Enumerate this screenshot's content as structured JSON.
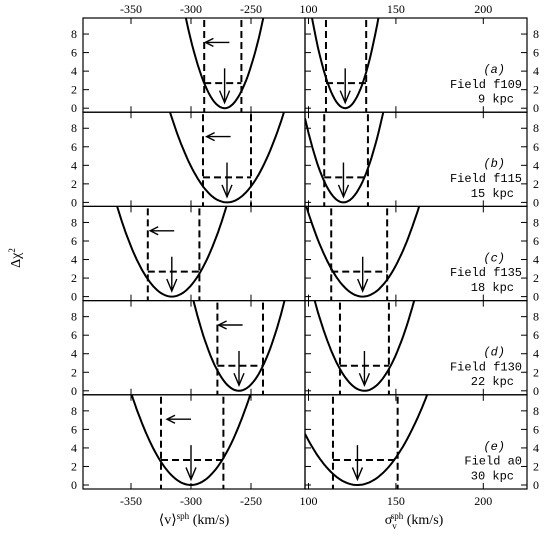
{
  "figure": {
    "ylabel_prefix": "Δχ",
    "ylabel_sup": "2"
  },
  "chart_data": {
    "type": "line",
    "shared": {
      "y_ticks": [
        0,
        2,
        4,
        6,
        8
      ],
      "ylim": [
        0,
        9.3
      ]
    },
    "columns": [
      {
        "id": "mean-velocity",
        "xlabel_main": "⟨v⟩",
        "xlabel_sup": "sph",
        "xlabel_unit": " (km/s)",
        "xlim": [
          -390,
          -205
        ],
        "x_ticks": [
          -350,
          -300,
          -250
        ],
        "x_tick_labels": [
          "-350",
          "-300",
          "-250"
        ]
      },
      {
        "id": "velocity-dispersion",
        "xlabel_main": "σ",
        "xlabel_sub": "v",
        "xlabel_sup": "sph",
        "xlabel_unit": " (km/s)",
        "xlim": [
          98,
          225
        ],
        "x_ticks": [
          100,
          150,
          200
        ],
        "x_tick_labels": [
          "100",
          "150",
          "200"
        ]
      }
    ],
    "panels": [
      {
        "tag": "(a)",
        "field": "Field f109",
        "distance": "9 kpc",
        "left": {
          "min_x": -272,
          "half_width": 17,
          "lower": -289,
          "upper": -258,
          "arrow_x": -288
        },
        "right": {
          "min_x": 121,
          "half_width": 10,
          "lower": 110,
          "upper": 133,
          "arrow_x": null
        }
      },
      {
        "tag": "(b)",
        "field": "Field f115",
        "distance": "15 kpc",
        "left": {
          "min_x": -270,
          "half_width": 25,
          "lower": -290,
          "upper": -250,
          "arrow_x": -287
        },
        "right": {
          "min_x": 120,
          "half_width": 12,
          "lower": 109,
          "upper": 134,
          "arrow_x": null
        }
      },
      {
        "tag": "(c)",
        "field": "Field f135",
        "distance": "18 kpc",
        "left": {
          "min_x": -316,
          "half_width": 24,
          "lower": -336,
          "upper": -293,
          "arrow_x": -334
        },
        "right": {
          "min_x": 131,
          "half_width": 17,
          "lower": 113,
          "upper": 145,
          "arrow_x": null
        }
      },
      {
        "tag": "(d)",
        "field": "Field f130",
        "distance": "22 kpc",
        "left": {
          "min_x": -260,
          "half_width": 20,
          "lower": -278,
          "upper": -240,
          "arrow_x": -277
        },
        "right": {
          "min_x": 132,
          "half_width": 15,
          "lower": 118,
          "upper": 146,
          "arrow_x": null
        }
      },
      {
        "tag": "(e)",
        "field": "Field a0",
        "distance": "30 kpc",
        "left": {
          "min_x": -300,
          "half_width": 26,
          "lower": -325,
          "upper": -273,
          "arrow_x": -320
        },
        "right": {
          "min_x": 128,
          "half_width": 21,
          "lower": 114,
          "upper": 151,
          "arrow_x": null
        }
      }
    ]
  }
}
